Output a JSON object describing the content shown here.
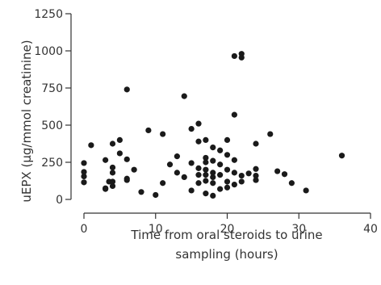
{
  "chart_data": {
    "type": "scatter",
    "xlabel_lines": [
      "Time from oral steroids to urine",
      "sampling (hours)"
    ],
    "ylabel": "uEPX (µg/mmol creatinine)",
    "xlim": [
      0,
      40
    ],
    "ylim": [
      0,
      1250
    ],
    "xticks": [
      0,
      10,
      20,
      30,
      40
    ],
    "yticks": [
      0,
      250,
      500,
      750,
      1000,
      1250
    ],
    "grid": false,
    "marker_color": "#1a1a1a",
    "points": [
      {
        "x": 0,
        "y": 245
      },
      {
        "x": 0,
        "y": 185
      },
      {
        "x": 0,
        "y": 155
      },
      {
        "x": 0,
        "y": 115
      },
      {
        "x": 1,
        "y": 365
      },
      {
        "x": 3,
        "y": 265
      },
      {
        "x": 3,
        "y": 75
      },
      {
        "x": 3,
        "y": 70
      },
      {
        "x": 3.5,
        "y": 120
      },
      {
        "x": 4,
        "y": 375
      },
      {
        "x": 4,
        "y": 215
      },
      {
        "x": 4,
        "y": 180
      },
      {
        "x": 4,
        "y": 120
      },
      {
        "x": 4,
        "y": 90
      },
      {
        "x": 5,
        "y": 400
      },
      {
        "x": 5,
        "y": 310
      },
      {
        "x": 6,
        "y": 740
      },
      {
        "x": 6,
        "y": 270
      },
      {
        "x": 6,
        "y": 140
      },
      {
        "x": 6,
        "y": 130
      },
      {
        "x": 7,
        "y": 200
      },
      {
        "x": 8,
        "y": 50
      },
      {
        "x": 9,
        "y": 465
      },
      {
        "x": 10,
        "y": 30
      },
      {
        "x": 11,
        "y": 440
      },
      {
        "x": 11,
        "y": 110
      },
      {
        "x": 12,
        "y": 235
      },
      {
        "x": 13,
        "y": 290
      },
      {
        "x": 13,
        "y": 180
      },
      {
        "x": 14,
        "y": 695
      },
      {
        "x": 14,
        "y": 150
      },
      {
        "x": 15,
        "y": 475
      },
      {
        "x": 15,
        "y": 245
      },
      {
        "x": 15,
        "y": 60
      },
      {
        "x": 16,
        "y": 510
      },
      {
        "x": 16,
        "y": 390
      },
      {
        "x": 16,
        "y": 210
      },
      {
        "x": 16,
        "y": 165
      },
      {
        "x": 16,
        "y": 110
      },
      {
        "x": 17,
        "y": 400
      },
      {
        "x": 17,
        "y": 280
      },
      {
        "x": 17,
        "y": 250
      },
      {
        "x": 17,
        "y": 200
      },
      {
        "x": 17,
        "y": 165
      },
      {
        "x": 17,
        "y": 125
      },
      {
        "x": 17,
        "y": 40
      },
      {
        "x": 18,
        "y": 350
      },
      {
        "x": 18,
        "y": 260
      },
      {
        "x": 18,
        "y": 180
      },
      {
        "x": 18,
        "y": 150
      },
      {
        "x": 18,
        "y": 110
      },
      {
        "x": 18,
        "y": 25
      },
      {
        "x": 19,
        "y": 330
      },
      {
        "x": 19,
        "y": 235
      },
      {
        "x": 19,
        "y": 165
      },
      {
        "x": 19,
        "y": 70
      },
      {
        "x": 20,
        "y": 400
      },
      {
        "x": 20,
        "y": 300
      },
      {
        "x": 20,
        "y": 200
      },
      {
        "x": 20,
        "y": 120
      },
      {
        "x": 20,
        "y": 80
      },
      {
        "x": 21,
        "y": 965
      },
      {
        "x": 21,
        "y": 570
      },
      {
        "x": 21,
        "y": 265
      },
      {
        "x": 21,
        "y": 180
      },
      {
        "x": 21,
        "y": 100
      },
      {
        "x": 22,
        "y": 980
      },
      {
        "x": 22,
        "y": 955
      },
      {
        "x": 22,
        "y": 160
      },
      {
        "x": 22,
        "y": 120
      },
      {
        "x": 23,
        "y": 175
      },
      {
        "x": 24,
        "y": 375
      },
      {
        "x": 24,
        "y": 205
      },
      {
        "x": 24,
        "y": 160
      },
      {
        "x": 24,
        "y": 130
      },
      {
        "x": 26,
        "y": 440
      },
      {
        "x": 27,
        "y": 190
      },
      {
        "x": 28,
        "y": 170
      },
      {
        "x": 29,
        "y": 110
      },
      {
        "x": 31,
        "y": 60
      },
      {
        "x": 36,
        "y": 295
      }
    ]
  }
}
